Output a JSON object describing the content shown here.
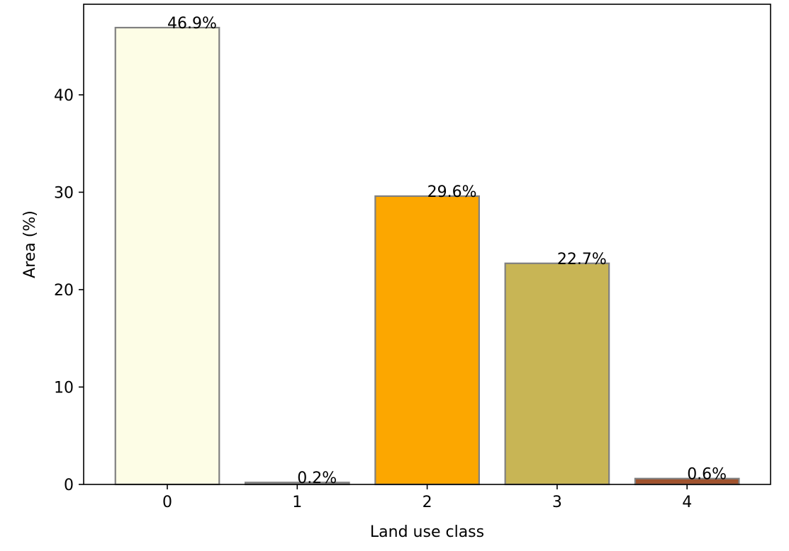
{
  "chart_data": {
    "type": "bar",
    "categories": [
      "0",
      "1",
      "2",
      "3",
      "4"
    ],
    "values": [
      46.9,
      0.2,
      29.6,
      22.7,
      0.6
    ],
    "bar_labels": [
      "46.9%",
      "0.2%",
      "29.6%",
      "22.7%",
      "0.6%"
    ],
    "bar_colors": [
      "#fdfde6",
      "#8c8c8c",
      "#fca700",
      "#c8b555",
      "#a0522d"
    ],
    "edge_color": "#808080",
    "xlabel": "Land use class",
    "ylabel": "Area (%)",
    "yticks": [
      0,
      10,
      20,
      30,
      40
    ],
    "ylim": [
      0,
      49.3
    ],
    "grid": false
  }
}
